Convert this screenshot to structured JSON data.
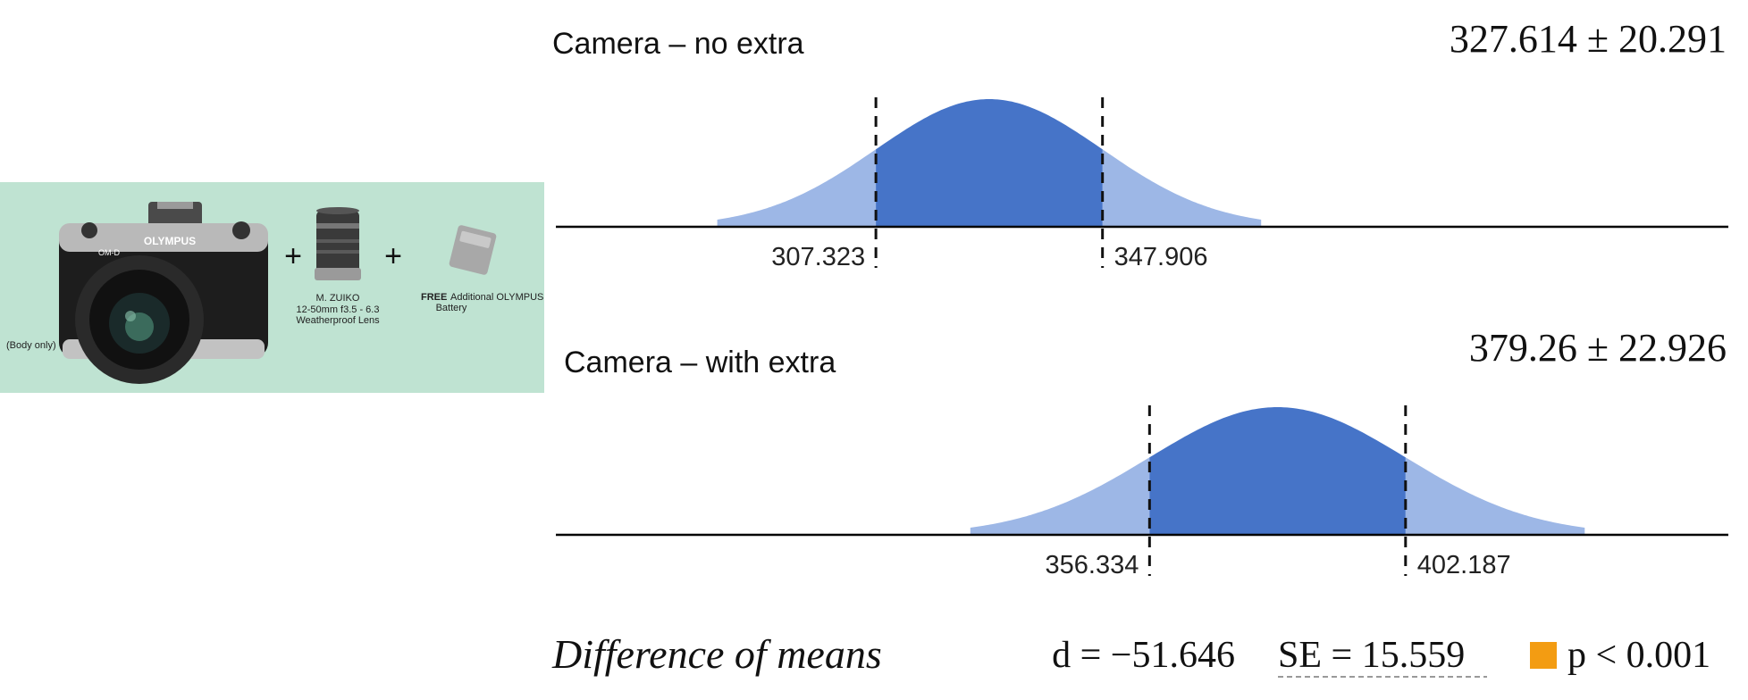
{
  "product_image": {
    "background": "#bfe3d2",
    "brand_on_camera": "OLYMPUS",
    "model_on_camera": "OM-D",
    "plus_symbol": "+",
    "body_only_label": "(Body only)",
    "lens_caption_lines": [
      "M. ZUIKO",
      "12-50mm f3.5 - 6.3",
      "Weatherproof Lens"
    ],
    "battery_caption_bold": "FREE",
    "battery_caption_lines": [
      "Additional OLYMPUS",
      "Battery"
    ]
  },
  "chart_data": [
    {
      "type": "area",
      "title": "Camera – no extra",
      "estimate_label": "327.614 ± 20.291",
      "mean": 327.614,
      "interval": [
        307.323,
        347.906
      ],
      "interval_labels": [
        "307.323",
        "347.906"
      ],
      "fill_color": "#4674c8",
      "tail_color": "#9db7e6"
    },
    {
      "type": "area",
      "title": "Camera – with extra",
      "estimate_label": "379.26 ± 22.926",
      "mean": 379.26,
      "interval": [
        356.334,
        402.187
      ],
      "interval_labels": [
        "356.334",
        "402.187"
      ],
      "fill_color": "#4674c8",
      "tail_color": "#9db7e6"
    }
  ],
  "difference": {
    "label": "Difference of means",
    "d_text": "d = −51.646",
    "se_text": "SE = 15.559",
    "p_text": "p < 0.001",
    "marker_color": "#f39c12"
  },
  "axis_range": [
    250,
    460
  ]
}
